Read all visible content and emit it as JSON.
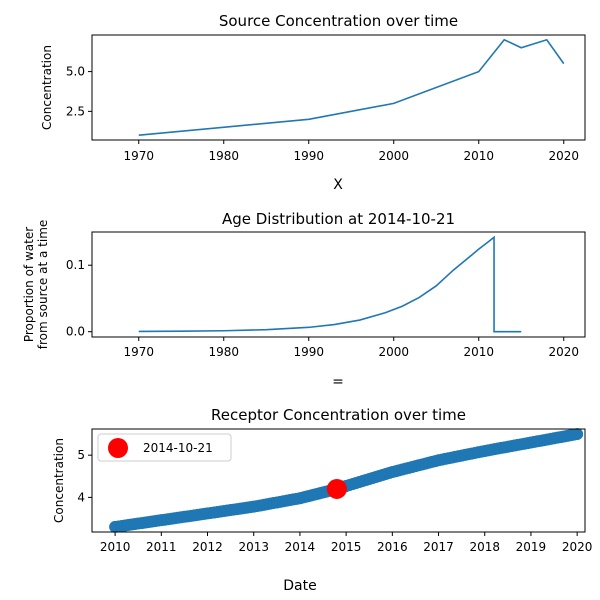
{
  "colors": {
    "line": "#1f77b4",
    "highlight": "#ff0000",
    "axis": "#000000",
    "legend_border": "#cccccc"
  },
  "separators": {
    "between_1_2": "X",
    "between_2_3": "=",
    "bottom_label": "Date"
  },
  "chart_data": [
    {
      "type": "line",
      "title": "Source Concentration over time",
      "xlabel": "",
      "ylabel": "Concentration",
      "xlim": [
        1964.5,
        2022.5
      ],
      "ylim": [
        0.7,
        7.3
      ],
      "x_ticks": [
        1970,
        1980,
        1990,
        2000,
        2010,
        2020
      ],
      "x_tick_labels": [
        "1970",
        "1980",
        "1990",
        "2000",
        "2010",
        "2020"
      ],
      "y_ticks": [
        2.5,
        5.0
      ],
      "y_tick_labels": [
        "2.5",
        "5.0"
      ],
      "grid": false,
      "series": [
        {
          "x": [
            1970,
            1990,
            2000,
            2010,
            2013,
            2015,
            2018,
            2020
          ],
          "y": [
            1.0,
            2.0,
            3.0,
            5.0,
            7.0,
            6.5,
            7.0,
            5.5
          ]
        }
      ]
    },
    {
      "type": "line",
      "title": "Age Distribution at 2014-10-21",
      "xlabel": "",
      "ylabel": [
        "Proportion of water",
        "from source at a time"
      ],
      "xlim": [
        1964.5,
        2022.5
      ],
      "ylim": [
        -0.008,
        0.15
      ],
      "x_ticks": [
        1970,
        1980,
        1990,
        2000,
        2010,
        2020
      ],
      "x_tick_labels": [
        "1970",
        "1980",
        "1990",
        "2000",
        "2010",
        "2020"
      ],
      "y_ticks": [
        0.0,
        0.1
      ],
      "y_tick_labels": [
        "0.0",
        "0.1"
      ],
      "grid": false,
      "series": [
        {
          "x": [
            1970,
            1975,
            1980,
            1985,
            1990,
            1993,
            1996,
            1999,
            2001,
            2003,
            2005,
            2007,
            2009,
            2010,
            2011,
            2011.8,
            2011.8,
            2015
          ],
          "y": [
            0.0003,
            0.0007,
            0.0014,
            0.003,
            0.0065,
            0.0107,
            0.0175,
            0.0285,
            0.0383,
            0.0515,
            0.069,
            0.0925,
            0.1135,
            0.1242,
            0.134,
            0.142,
            0.0,
            0.0
          ]
        }
      ]
    },
    {
      "type": "scatter",
      "title": "Receptor Concentration over time",
      "xlabel": "Date",
      "ylabel": "Concentration",
      "xlim": [
        2009.5,
        2020.17
      ],
      "ylim": [
        3.18,
        5.62
      ],
      "x_ticks": [
        2010,
        2011,
        2012,
        2013,
        2014,
        2015,
        2016,
        2017,
        2018,
        2019,
        2020
      ],
      "x_tick_labels": [
        "2010",
        "2011",
        "2012",
        "2013",
        "2014",
        "2015",
        "2016",
        "2017",
        "2018",
        "2019",
        "2020"
      ],
      "y_ticks": [
        4,
        5
      ],
      "y_tick_labels": [
        "4",
        "5"
      ],
      "grid": false,
      "legend": {
        "position": "top-left",
        "entries": [
          "2014-10-21"
        ]
      },
      "highlight_point": {
        "x": 2014.8,
        "y": 4.2
      },
      "series": [
        {
          "x": [
            2010,
            2011,
            2012,
            2013,
            2014,
            2014.8,
            2015,
            2016,
            2017,
            2018,
            2019,
            2020
          ],
          "y": [
            3.3,
            3.46,
            3.62,
            3.78,
            3.98,
            4.2,
            4.27,
            4.6,
            4.88,
            5.1,
            5.3,
            5.5
          ]
        }
      ]
    }
  ]
}
